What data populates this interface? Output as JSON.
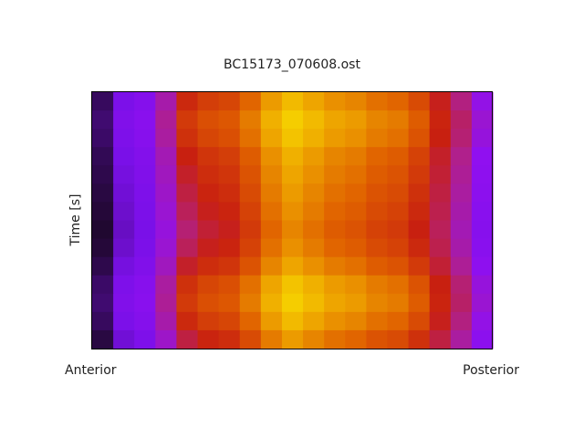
{
  "chart_data": {
    "type": "heatmap",
    "title": "BC15173_070608.ost",
    "ylabel": "Time [s]",
    "annotations": [
      "Anterior",
      "Posterior"
    ],
    "colormap": [
      {
        "value": 0,
        "color": "#200830"
      },
      {
        "value": 0.2,
        "color": "#7a10e8"
      },
      {
        "value": 0.3,
        "color": "#9010f0"
      },
      {
        "value": 0.4,
        "color": "#b0208c"
      },
      {
        "value": 0.5,
        "color": "#c82010"
      },
      {
        "value": 0.65,
        "color": "#e06000"
      },
      {
        "value": 0.8,
        "color": "#f0b000"
      },
      {
        "value": 0.9,
        "color": "#f8e000"
      }
    ],
    "z": [
      [
        0.05,
        0.21,
        0.25,
        0.37,
        0.52,
        0.57,
        0.59,
        0.66,
        0.76,
        0.82,
        0.78,
        0.74,
        0.72,
        0.68,
        0.66,
        0.6,
        0.49,
        0.41,
        0.31
      ],
      [
        0.07,
        0.23,
        0.27,
        0.39,
        0.56,
        0.61,
        0.63,
        0.7,
        0.8,
        0.86,
        0.82,
        0.78,
        0.76,
        0.72,
        0.7,
        0.64,
        0.51,
        0.43,
        0.33
      ],
      [
        0.06,
        0.22,
        0.26,
        0.38,
        0.54,
        0.59,
        0.61,
        0.68,
        0.78,
        0.84,
        0.8,
        0.76,
        0.74,
        0.7,
        0.68,
        0.62,
        0.5,
        0.42,
        0.32
      ],
      [
        0.04,
        0.2,
        0.24,
        0.36,
        0.5,
        0.55,
        0.57,
        0.64,
        0.74,
        0.8,
        0.76,
        0.72,
        0.7,
        0.66,
        0.64,
        0.58,
        0.48,
        0.4,
        0.3
      ],
      [
        0.03,
        0.19,
        0.23,
        0.35,
        0.48,
        0.53,
        0.55,
        0.62,
        0.72,
        0.78,
        0.74,
        0.7,
        0.68,
        0.64,
        0.62,
        0.56,
        0.47,
        0.39,
        0.29
      ],
      [
        0.02,
        0.18,
        0.22,
        0.34,
        0.46,
        0.51,
        0.53,
        0.6,
        0.7,
        0.76,
        0.72,
        0.68,
        0.66,
        0.62,
        0.6,
        0.54,
        0.46,
        0.38,
        0.28
      ],
      [
        0.01,
        0.17,
        0.21,
        0.33,
        0.44,
        0.49,
        0.51,
        0.58,
        0.68,
        0.74,
        0.7,
        0.66,
        0.64,
        0.6,
        0.58,
        0.52,
        0.45,
        0.37,
        0.27
      ],
      [
        0.0,
        0.16,
        0.2,
        0.32,
        0.42,
        0.47,
        0.49,
        0.56,
        0.66,
        0.72,
        0.68,
        0.64,
        0.62,
        0.58,
        0.56,
        0.5,
        0.44,
        0.36,
        0.26
      ],
      [
        0.01,
        0.17,
        0.21,
        0.33,
        0.44,
        0.49,
        0.51,
        0.58,
        0.68,
        0.74,
        0.7,
        0.66,
        0.64,
        0.6,
        0.58,
        0.52,
        0.45,
        0.37,
        0.27
      ],
      [
        0.03,
        0.19,
        0.23,
        0.35,
        0.48,
        0.53,
        0.55,
        0.62,
        0.72,
        0.78,
        0.74,
        0.7,
        0.68,
        0.64,
        0.62,
        0.56,
        0.47,
        0.39,
        0.29
      ],
      [
        0.06,
        0.22,
        0.26,
        0.38,
        0.54,
        0.59,
        0.61,
        0.68,
        0.78,
        0.84,
        0.8,
        0.76,
        0.74,
        0.7,
        0.68,
        0.62,
        0.5,
        0.42,
        0.32
      ],
      [
        0.07,
        0.23,
        0.27,
        0.39,
        0.56,
        0.61,
        0.63,
        0.7,
        0.8,
        0.86,
        0.82,
        0.78,
        0.76,
        0.72,
        0.7,
        0.64,
        0.51,
        0.43,
        0.33
      ],
      [
        0.05,
        0.21,
        0.25,
        0.37,
        0.52,
        0.57,
        0.59,
        0.66,
        0.76,
        0.82,
        0.78,
        0.74,
        0.72,
        0.68,
        0.66,
        0.6,
        0.49,
        0.41,
        0.31
      ],
      [
        0.02,
        0.18,
        0.22,
        0.34,
        0.46,
        0.51,
        0.53,
        0.6,
        0.7,
        0.76,
        0.72,
        0.68,
        0.66,
        0.62,
        0.6,
        0.54,
        0.46,
        0.38,
        0.28
      ]
    ]
  }
}
